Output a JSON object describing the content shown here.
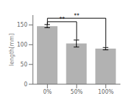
{
  "chart_data": {
    "type": "bar",
    "categories": [
      "0%",
      "50%",
      "100%"
    ],
    "values": [
      147,
      103,
      90
    ],
    "errors": [
      4,
      9,
      3
    ],
    "color": "#b2b2b2",
    "ylabel": "length[mm]",
    "ylim": [
      0,
      175
    ],
    "yticks": [
      0,
      50,
      100,
      150
    ],
    "annotations": [
      {
        "text": "**",
        "x1": "0%",
        "x2": "50%",
        "y": 158,
        "drop1": 151,
        "drop2": 113
      },
      {
        "text": "**",
        "x1": "0%",
        "x2": "100%",
        "y": 167,
        "drop1": 151,
        "drop2": 94
      }
    ]
  }
}
